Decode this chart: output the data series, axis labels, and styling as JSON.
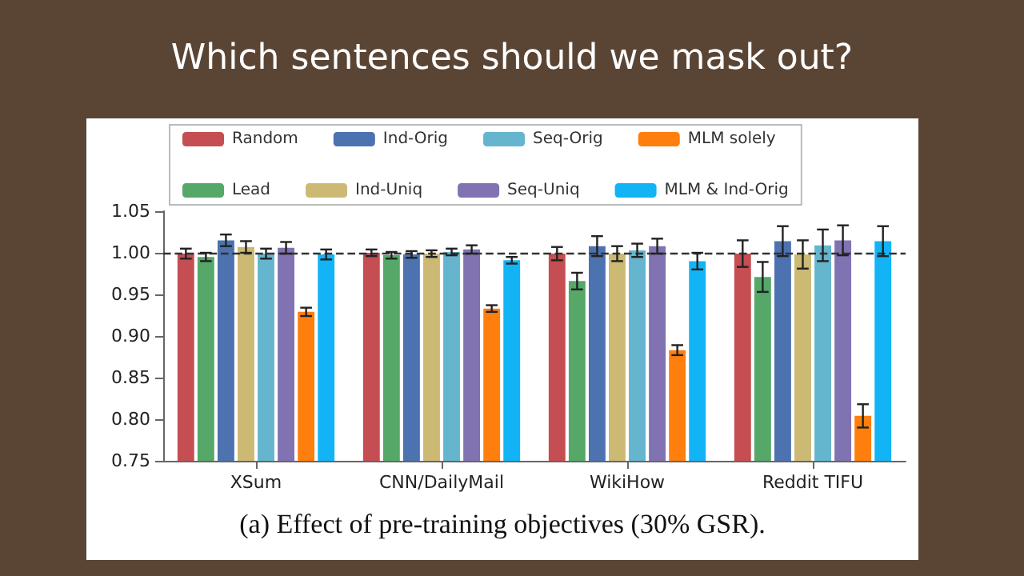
{
  "chart_data": {
    "type": "bar",
    "title": "Which sentences should we mask out?",
    "annotations": [
      "(a) Effect of pre-training objectives (30% GSR)."
    ],
    "categories": [
      "XSum",
      "CNN/DailyMail",
      "WikiHow",
      "Reddit TIFU"
    ],
    "series": [
      {
        "name": "Random",
        "color": "#c44e52",
        "values": [
          0.999,
          1.0,
          0.999,
          0.999
        ],
        "errors": [
          0.006,
          0.004,
          0.008,
          0.016
        ]
      },
      {
        "name": "Lead",
        "color": "#55a868",
        "values": [
          0.995,
          0.997,
          0.966,
          0.971
        ],
        "errors": [
          0.005,
          0.004,
          0.01,
          0.018
        ]
      },
      {
        "name": "Ind-Orig",
        "color": "#4c72b0",
        "values": [
          1.015,
          0.998,
          1.008,
          1.014
        ],
        "errors": [
          0.007,
          0.004,
          0.012,
          0.018
        ]
      },
      {
        "name": "Ind-Uniq",
        "color": "#ccb974",
        "values": [
          1.007,
          0.999,
          0.999,
          0.998
        ],
        "errors": [
          0.007,
          0.004,
          0.009,
          0.017
        ]
      },
      {
        "name": "Seq-Orig",
        "color": "#64b5cd",
        "values": [
          0.999,
          1.001,
          1.003,
          1.009
        ],
        "errors": [
          0.006,
          0.004,
          0.008,
          0.019
        ]
      },
      {
        "name": "Seq-Uniq",
        "color": "#8172b2",
        "values": [
          1.006,
          1.004,
          1.008,
          1.015
        ],
        "errors": [
          0.007,
          0.005,
          0.009,
          0.018
        ]
      },
      {
        "name": "MLM solely",
        "color": "#ff7f0e",
        "values": [
          0.929,
          0.933,
          0.883,
          0.804
        ],
        "errors": [
          0.005,
          0.004,
          0.006,
          0.014
        ]
      },
      {
        "name": "MLM & Ind-Orig",
        "color": "#12b4f5",
        "values": [
          0.998,
          0.991,
          0.99,
          1.014
        ],
        "errors": [
          0.006,
          0.004,
          0.01,
          0.018
        ]
      }
    ],
    "ylim": [
      0.75,
      1.05
    ],
    "yticks": [
      0.75,
      {
        "value": 0.8,
        "label": "0.80"
      },
      0.85,
      {
        "value": 0.9,
        "label": "0.90"
      },
      0.95,
      {
        "value": 1.0,
        "label": "1.00"
      },
      1.05
    ],
    "ref_lines": [
      {
        "axis": "y",
        "value": 1.0,
        "label": null,
        "color": "#333333",
        "line_style": "dashed"
      }
    ],
    "grid": false,
    "legend": "top"
  }
}
